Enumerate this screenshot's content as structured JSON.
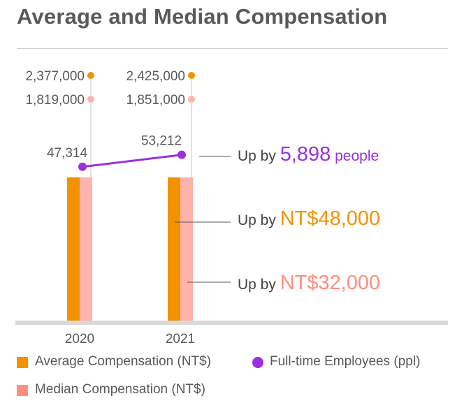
{
  "title": "Average and Median Compensation",
  "colors": {
    "average": "#f39200",
    "median": "#ffb3ab",
    "median_legend": "#ff8f80",
    "employees": "#9b30e0",
    "axis": "#d9d9d9",
    "text": "#595959"
  },
  "chart_data": {
    "type": "bar",
    "title": "Average and Median Compensation",
    "categories": [
      "2020",
      "2021"
    ],
    "series": [
      {
        "name": "Average Compensation (NT$)",
        "values": [
          2377000,
          2425000
        ],
        "labels": [
          "2,377,000",
          "2,425,000"
        ]
      },
      {
        "name": "Median Compensation (NT$)",
        "values": [
          1819000,
          1851000
        ],
        "labels": [
          "1,819,000",
          "1,851,000"
        ]
      },
      {
        "name": "Full-time Employees (ppl)",
        "type": "line",
        "values": [
          47314,
          53212
        ],
        "labels": [
          "47,314",
          "53,212"
        ]
      }
    ],
    "legend": [
      {
        "name": "Average Compensation (NT$)",
        "marker": "square",
        "color": "#f39200"
      },
      {
        "name": "Full-time Employees (ppl)",
        "marker": "circle",
        "color": "#9b30e0"
      },
      {
        "name": "Median Compensation (NT$)",
        "marker": "square",
        "color": "#ff8f80"
      }
    ],
    "annotations": [
      {
        "prefix": "Up by ",
        "value": "5,898",
        "unit": " people",
        "series": "Full-time Employees (ppl)",
        "color": "#9b30e0"
      },
      {
        "prefix": "Up by ",
        "value": "NT$48,000",
        "unit": "",
        "series": "Average Compensation (NT$)",
        "color": "#f39200"
      },
      {
        "prefix": "Up by ",
        "value": "NT$32,000",
        "unit": "",
        "series": "Median Compensation (NT$)",
        "color": "#ff8f80"
      }
    ]
  }
}
